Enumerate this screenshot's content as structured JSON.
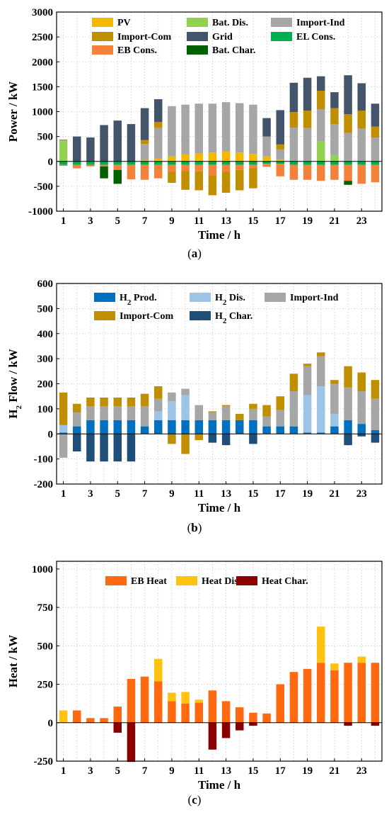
{
  "chart_data": [
    {
      "type": "bar",
      "stacked": true,
      "caption": "a",
      "xlabel": "Time / h",
      "ylabel": "Power / kW",
      "ylim": [
        -1000,
        3000
      ],
      "yticks": [
        -1000,
        -500,
        0,
        500,
        1000,
        1500,
        2000,
        2500,
        3000
      ],
      "xticks": [
        1,
        3,
        5,
        7,
        9,
        11,
        13,
        15,
        17,
        19,
        21,
        23
      ],
      "grid": true,
      "legend_position": "top",
      "categories": [
        1,
        2,
        3,
        4,
        5,
        6,
        7,
        8,
        9,
        10,
        11,
        12,
        13,
        14,
        15,
        16,
        17,
        18,
        19,
        20,
        21,
        22,
        23,
        24
      ],
      "series": [
        {
          "name": "PV",
          "color": "#f5b800",
          "values": [
            0,
            0,
            0,
            0,
            0,
            0,
            20,
            50,
            100,
            140,
            160,
            180,
            200,
            180,
            150,
            100,
            40,
            0,
            0,
            0,
            0,
            0,
            0,
            0
          ]
        },
        {
          "name": "Bat. Dis.",
          "color": "#92d050",
          "values": [
            400,
            0,
            0,
            0,
            0,
            0,
            0,
            0,
            0,
            0,
            0,
            0,
            0,
            0,
            0,
            0,
            0,
            0,
            0,
            400,
            130,
            0,
            0,
            0
          ]
        },
        {
          "name": "Import-Ind",
          "color": "#a6a6a6",
          "values": [
            20,
            0,
            0,
            0,
            0,
            0,
            330,
            620,
            1010,
            1000,
            1000,
            980,
            990,
            990,
            990,
            400,
            200,
            680,
            670,
            650,
            620,
            570,
            660,
            480
          ]
        },
        {
          "name": "Import-Com",
          "color": "#bf8f00",
          "values": [
            20,
            0,
            0,
            0,
            0,
            0,
            80,
            120,
            0,
            0,
            0,
            0,
            0,
            0,
            0,
            0,
            100,
            310,
            350,
            370,
            320,
            380,
            360,
            220
          ]
        },
        {
          "name": "Grid",
          "color": "#44546a",
          "values": [
            0,
            500,
            480,
            730,
            820,
            750,
            640,
            460,
            0,
            0,
            0,
            0,
            0,
            0,
            0,
            370,
            690,
            590,
            660,
            290,
            320,
            780,
            550,
            460
          ]
        },
        {
          "name": "EL Cons.",
          "color": "#00b050",
          "values": [
            -70,
            -70,
            -70,
            -70,
            -70,
            -70,
            -70,
            -70,
            -70,
            -70,
            -70,
            -70,
            -70,
            -70,
            -70,
            -50,
            -50,
            -70,
            -70,
            -70,
            -70,
            -70,
            -70,
            -70
          ]
        },
        {
          "name": "EB Cons.",
          "color": "#f4823c",
          "values": [
            -20,
            -70,
            -30,
            -30,
            -100,
            -290,
            -300,
            -270,
            -140,
            -120,
            -130,
            -210,
            -140,
            -100,
            -60,
            -60,
            -250,
            -300,
            -300,
            -320,
            -300,
            -320,
            -380,
            -350
          ]
        },
        {
          "name": "Bat. Char.",
          "color": "#006100",
          "values": [
            0,
            0,
            0,
            -240,
            -280,
            0,
            0,
            0,
            0,
            0,
            0,
            0,
            0,
            0,
            0,
            0,
            0,
            0,
            0,
            0,
            0,
            -80,
            0,
            0
          ]
        },
        {
          "name": "",
          "color": "#bf8f00",
          "values": [
            0,
            0,
            0,
            0,
            0,
            0,
            0,
            0,
            -220,
            -380,
            -380,
            -400,
            -420,
            -410,
            -410,
            0,
            0,
            0,
            0,
            0,
            0,
            0,
            0,
            0
          ]
        }
      ]
    },
    {
      "type": "bar",
      "stacked": true,
      "caption": "b",
      "xlabel": "Time / h",
      "ylabel": "H",
      "ylabel_sub": "2",
      "ylabel_rest": " Flow / kW",
      "ylim": [
        -200,
        600
      ],
      "yticks": [
        -200,
        -100,
        0,
        100,
        200,
        300,
        400,
        500,
        600
      ],
      "xticks": [
        1,
        3,
        5,
        7,
        9,
        11,
        13,
        15,
        17,
        19,
        21,
        23
      ],
      "grid": true,
      "legend_position": "top",
      "categories": [
        1,
        2,
        3,
        4,
        5,
        6,
        7,
        8,
        9,
        10,
        11,
        12,
        13,
        14,
        15,
        16,
        17,
        18,
        19,
        20,
        21,
        22,
        23,
        24
      ],
      "series": [
        {
          "name": "H",
          "name_sub": "2",
          "name_rest": " Prod.",
          "color": "#0070c0",
          "values": [
            5,
            30,
            55,
            55,
            55,
            55,
            30,
            55,
            55,
            55,
            55,
            55,
            55,
            55,
            55,
            30,
            30,
            30,
            5,
            5,
            30,
            55,
            40,
            15
          ]
        },
        {
          "name": "H",
          "name_sub": "2",
          "name_rest": " Dis.",
          "color": "#9dc3e6",
          "values": [
            30,
            0,
            0,
            0,
            0,
            0,
            0,
            35,
            75,
            100,
            0,
            0,
            0,
            0,
            0,
            0,
            0,
            0,
            150,
            185,
            50,
            0,
            0,
            0
          ]
        },
        {
          "name": "Import-Ind",
          "color": "#a6a6a6",
          "values": [
            0,
            55,
            55,
            55,
            55,
            55,
            80,
            50,
            35,
            25,
            60,
            30,
            55,
            0,
            45,
            40,
            65,
            140,
            115,
            120,
            120,
            130,
            130,
            125
          ]
        },
        {
          "name": "Import-Com",
          "color": "#bf8f00",
          "values": [
            130,
            35,
            35,
            35,
            35,
            35,
            50,
            50,
            0,
            0,
            0,
            5,
            5,
            25,
            20,
            45,
            55,
            70,
            10,
            15,
            15,
            85,
            75,
            75
          ]
        },
        {
          "name": "H",
          "name_sub": "2",
          "name_rest": " Char.",
          "color": "#1f4e79",
          "values": [
            0,
            -70,
            -110,
            -110,
            -110,
            -110,
            0,
            0,
            0,
            0,
            0,
            -35,
            -45,
            0,
            -40,
            0,
            0,
            0,
            0,
            0,
            0,
            -45,
            -10,
            -35
          ]
        },
        {
          "name": "",
          "color": "#a6a6a6",
          "values": [
            -95,
            0,
            0,
            0,
            0,
            0,
            0,
            0,
            0,
            0,
            0,
            0,
            0,
            0,
            0,
            0,
            0,
            0,
            0,
            0,
            0,
            0,
            0,
            0
          ]
        },
        {
          "name": "",
          "color": "#bf8f00",
          "values": [
            0,
            0,
            0,
            0,
            0,
            0,
            0,
            0,
            -40,
            -80,
            -25,
            0,
            0,
            0,
            0,
            0,
            0,
            0,
            0,
            0,
            0,
            0,
            0,
            0
          ]
        }
      ]
    },
    {
      "type": "bar",
      "stacked": true,
      "caption": "c",
      "xlabel": "Time / h",
      "ylabel": "Heat / kW",
      "ylim": [
        -250,
        1050
      ],
      "yticks": [
        -250,
        0,
        250,
        500,
        750,
        1000
      ],
      "xticks": [
        1,
        3,
        5,
        7,
        9,
        11,
        13,
        15,
        17,
        19,
        21,
        23
      ],
      "grid": true,
      "legend_position": "top",
      "categories": [
        1,
        2,
        3,
        4,
        5,
        6,
        7,
        8,
        9,
        10,
        11,
        12,
        13,
        14,
        15,
        16,
        17,
        18,
        19,
        20,
        21,
        22,
        23,
        24
      ],
      "series": [
        {
          "name": "EB Heat",
          "color": "#ff6a10",
          "values": [
            0,
            80,
            30,
            30,
            105,
            285,
            300,
            270,
            140,
            125,
            130,
            210,
            140,
            100,
            65,
            60,
            250,
            330,
            350,
            390,
            340,
            390,
            390,
            390
          ]
        },
        {
          "name": "Heat Dis.",
          "color": "#ffc20e",
          "values": [
            80,
            0,
            0,
            0,
            0,
            0,
            0,
            145,
            55,
            75,
            20,
            0,
            0,
            0,
            0,
            0,
            0,
            0,
            0,
            235,
            45,
            0,
            40,
            0
          ]
        },
        {
          "name": "Heat Char.",
          "color": "#8b0000",
          "values": [
            0,
            0,
            0,
            0,
            -65,
            -255,
            0,
            0,
            0,
            0,
            0,
            -175,
            -100,
            -50,
            -20,
            0,
            0,
            0,
            0,
            0,
            0,
            -20,
            0,
            -20
          ]
        }
      ]
    }
  ]
}
